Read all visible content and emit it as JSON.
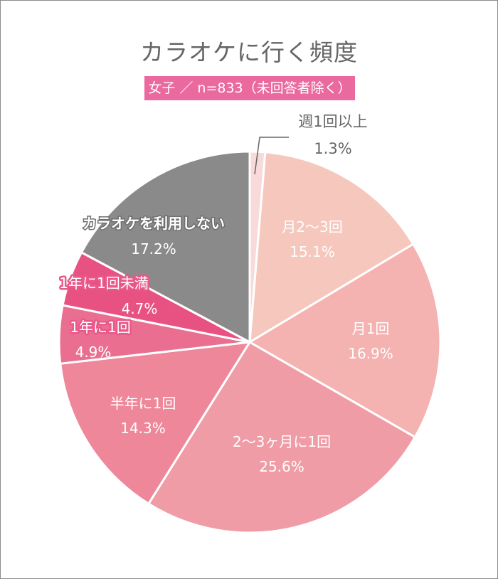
{
  "chart_data": {
    "type": "pie",
    "title": "カラオケに行く頻度",
    "subtitle": "女子 ／ n=833（未回答者除く）",
    "start": "top",
    "direction": "clockwise",
    "slices": [
      {
        "label": "週1回以上",
        "value": 1.3,
        "value_label": "1.3%",
        "color": "#f8dada"
      },
      {
        "label": "月2～3回",
        "value": 15.1,
        "value_label": "15.1%",
        "color": "#f6c7bd"
      },
      {
        "label": "月1回",
        "value": 16.9,
        "value_label": "16.9%",
        "color": "#f4b2b1"
      },
      {
        "label": "2～3ヶ月に1回",
        "value": 25.6,
        "value_label": "25.6%",
        "color": "#f09ca6"
      },
      {
        "label": "半年に1回",
        "value": 14.3,
        "value_label": "14.3%",
        "color": "#ed8799"
      },
      {
        "label": "1年に1回",
        "value": 4.9,
        "value_label": "4.9%",
        "color": "#ea6e8f"
      },
      {
        "label": "1年に1回未満",
        "value": 4.7,
        "value_label": "4.7%",
        "color": "#e85283"
      },
      {
        "label": "カラオケを利用しない",
        "value": 17.2,
        "value_label": "17.2%",
        "color": "#8a8a8a"
      }
    ]
  }
}
